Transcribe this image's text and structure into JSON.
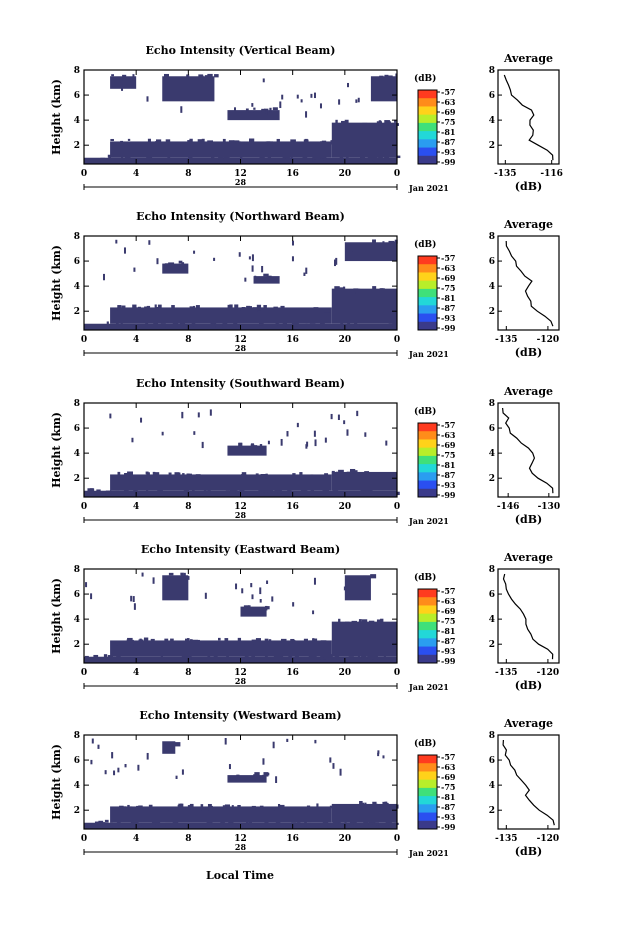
{
  "x_axis": {
    "ticks": [
      "0",
      "4",
      "8",
      "12",
      "16",
      "20",
      "0"
    ],
    "day_label": "28",
    "date_label": "Jan 2021",
    "xlabel": "Local Time"
  },
  "height_axis": {
    "label": "Height (km)",
    "ticks": [
      "2",
      "4",
      "6",
      "8"
    ]
  },
  "colorbar": {
    "unit": "(dB)",
    "labels": [
      "-57",
      "-63",
      "-69",
      "-75",
      "-81",
      "-87",
      "-93",
      "-99"
    ],
    "colors": [
      "#ff3b1f",
      "#ff8c1a",
      "#ffd21a",
      "#b8ee2a",
      "#3fe07a",
      "#22d8d8",
      "#2a9df0",
      "#2a4ff0",
      "#3a3a8a"
    ]
  },
  "chart_data": [
    {
      "type": "heatmap",
      "title": "Echo Intensity (Vertical Beam)",
      "ylabel": "Height (km)",
      "xlim": [
        0,
        24
      ],
      "ylim": [
        0.5,
        8
      ],
      "blobs": [
        {
          "x0": 0,
          "x1": 24,
          "y0": 0.5,
          "y1": 1.0
        },
        {
          "x0": 2,
          "x1": 19,
          "y0": 1.0,
          "y1": 2.3
        },
        {
          "x0": 19,
          "x1": 24,
          "y0": 1.0,
          "y1": 3.8
        },
        {
          "x0": 11,
          "x1": 15,
          "y0": 4.0,
          "y1": 4.8
        },
        {
          "x0": 6,
          "x1": 10,
          "y0": 5.5,
          "y1": 7.5
        },
        {
          "x0": 2,
          "x1": 4,
          "y0": 6.5,
          "y1": 7.5
        },
        {
          "x0": 22,
          "x1": 24,
          "y0": 5.5,
          "y1": 7.5
        }
      ],
      "average": {
        "title": "Average",
        "xlabel": "(dB)",
        "xticks": [
          "-135",
          "-116"
        ],
        "xlim": [
          -138,
          -113
        ],
        "ylim": [
          0.5,
          8
        ],
        "yticks": [
          "2",
          "4",
          "6",
          "8"
        ],
        "heights": [
          0.8,
          1.2,
          1.6,
          2.0,
          2.4,
          2.8,
          3.2,
          3.6,
          4.0,
          4.4,
          4.8,
          5.2,
          5.6,
          6.0,
          6.4,
          6.8,
          7.2,
          7.6
        ],
        "values": [
          -115,
          -116,
          -118,
          -122,
          -125,
          -124,
          -124,
          -125,
          -125,
          -123,
          -124,
          -128,
          -130,
          -132,
          -133,
          -134,
          -135,
          -135
        ]
      }
    },
    {
      "type": "heatmap",
      "title": "Echo Intensity (Northward Beam)",
      "ylabel": "Height (km)",
      "xlim": [
        0,
        24
      ],
      "ylim": [
        0.5,
        8
      ],
      "blobs": [
        {
          "x0": 0,
          "x1": 24,
          "y0": 0.5,
          "y1": 1.0
        },
        {
          "x0": 2,
          "x1": 19,
          "y0": 1.0,
          "y1": 2.3
        },
        {
          "x0": 19,
          "x1": 24,
          "y0": 1.0,
          "y1": 3.8
        },
        {
          "x0": 13,
          "x1": 15,
          "y0": 4.2,
          "y1": 4.8
        },
        {
          "x0": 6,
          "x1": 8,
          "y0": 5.0,
          "y1": 5.8
        },
        {
          "x0": 20,
          "x1": 24,
          "y0": 6.0,
          "y1": 7.5
        }
      ],
      "average": {
        "title": "Average",
        "xlabel": "(dB)",
        "xticks": [
          "-135",
          "-120"
        ],
        "xlim": [
          -138,
          -116
        ],
        "ylim": [
          0.5,
          8
        ],
        "yticks": [
          "2",
          "4",
          "6",
          "8"
        ],
        "heights": [
          0.8,
          1.2,
          1.6,
          2.0,
          2.4,
          2.8,
          3.2,
          3.6,
          4.0,
          4.4,
          4.8,
          5.2,
          5.6,
          6.0,
          6.4,
          6.8,
          7.2,
          7.6
        ],
        "values": [
          -118,
          -119,
          -121,
          -124,
          -126,
          -126,
          -127,
          -128,
          -127,
          -126,
          -128,
          -130,
          -131,
          -132,
          -133,
          -134,
          -135,
          -135
        ]
      }
    },
    {
      "type": "heatmap",
      "title": "Echo Intensity (Southward Beam)",
      "ylabel": "Height (km)",
      "xlim": [
        0,
        24
      ],
      "ylim": [
        0.5,
        8
      ],
      "blobs": [
        {
          "x0": 0,
          "x1": 24,
          "y0": 0.5,
          "y1": 1.0
        },
        {
          "x0": 2,
          "x1": 19,
          "y0": 1.0,
          "y1": 2.3
        },
        {
          "x0": 19,
          "x1": 24,
          "y0": 1.0,
          "y1": 2.5
        },
        {
          "x0": 11,
          "x1": 14,
          "y0": 3.8,
          "y1": 4.6
        }
      ],
      "average": {
        "title": "Average",
        "xlabel": "(dB)",
        "xticks": [
          "-146",
          "-130"
        ],
        "xlim": [
          -150,
          -126
        ],
        "ylim": [
          0.5,
          8
        ],
        "yticks": [
          "2",
          "4",
          "6",
          "8"
        ],
        "heights": [
          0.8,
          1.2,
          1.6,
          2.0,
          2.4,
          2.8,
          3.2,
          3.6,
          4.0,
          4.4,
          4.8,
          5.2,
          5.6,
          6.0,
          6.4,
          6.8,
          7.2,
          7.6
        ],
        "values": [
          -128,
          -129,
          -131,
          -134,
          -137,
          -138,
          -137,
          -136,
          -136,
          -138,
          -141,
          -143,
          -145,
          -146,
          -147,
          -146,
          -148,
          -148
        ]
      }
    },
    {
      "type": "heatmap",
      "title": "Echo Intensity (Eastward Beam)",
      "ylabel": "Height (km)",
      "xlim": [
        0,
        24
      ],
      "ylim": [
        0.5,
        8
      ],
      "blobs": [
        {
          "x0": 0,
          "x1": 24,
          "y0": 0.5,
          "y1": 1.0
        },
        {
          "x0": 2,
          "x1": 19,
          "y0": 1.0,
          "y1": 2.3
        },
        {
          "x0": 19,
          "x1": 24,
          "y0": 1.0,
          "y1": 3.8
        },
        {
          "x0": 12,
          "x1": 14,
          "y0": 4.2,
          "y1": 5.0
        },
        {
          "x0": 6,
          "x1": 8,
          "y0": 5.5,
          "y1": 7.5
        },
        {
          "x0": 20,
          "x1": 22,
          "y0": 5.5,
          "y1": 7.5
        }
      ],
      "average": {
        "title": "Average",
        "xlabel": "(dB)",
        "xticks": [
          "-135",
          "-120"
        ],
        "xlim": [
          -138,
          -116
        ],
        "ylim": [
          0.5,
          8
        ],
        "yticks": [
          "2",
          "4",
          "6",
          "8"
        ],
        "heights": [
          0.8,
          1.2,
          1.6,
          2.0,
          2.4,
          2.8,
          3.2,
          3.6,
          4.0,
          4.4,
          4.8,
          5.2,
          5.6,
          6.0,
          6.4,
          6.8,
          7.2,
          7.6
        ],
        "values": [
          -118,
          -118,
          -120,
          -123,
          -125,
          -126,
          -127,
          -128,
          -128,
          -129,
          -130,
          -132,
          -133,
          -134,
          -135,
          -135,
          -136,
          -136
        ]
      }
    },
    {
      "type": "heatmap",
      "title": "Echo Intensity (Westward Beam)",
      "ylabel": "Height (km)",
      "xlim": [
        0,
        24
      ],
      "ylim": [
        0.5,
        8
      ],
      "blobs": [
        {
          "x0": 0,
          "x1": 24,
          "y0": 0.5,
          "y1": 1.0
        },
        {
          "x0": 2,
          "x1": 19,
          "y0": 1.0,
          "y1": 2.3
        },
        {
          "x0": 19,
          "x1": 24,
          "y0": 1.0,
          "y1": 2.5
        },
        {
          "x0": 11,
          "x1": 14,
          "y0": 4.2,
          "y1": 4.8
        },
        {
          "x0": 6,
          "x1": 7,
          "y0": 6.5,
          "y1": 7.5
        }
      ],
      "average": {
        "title": "Average",
        "xlabel": "(dB)",
        "xticks": [
          "-135",
          "-120"
        ],
        "xlim": [
          -138,
          -116
        ],
        "ylim": [
          0.5,
          8
        ],
        "yticks": [
          "2",
          "4",
          "6",
          "8"
        ],
        "heights": [
          0.8,
          1.2,
          1.6,
          2.0,
          2.4,
          2.8,
          3.2,
          3.6,
          4.0,
          4.4,
          4.8,
          5.2,
          5.6,
          6.0,
          6.4,
          6.8,
          7.2,
          7.6
        ],
        "values": [
          -118,
          -118,
          -120,
          -123,
          -125,
          -127,
          -128,
          -127,
          -128,
          -130,
          -131,
          -132,
          -133,
          -134,
          -135,
          -135,
          -136,
          -136
        ]
      }
    }
  ]
}
